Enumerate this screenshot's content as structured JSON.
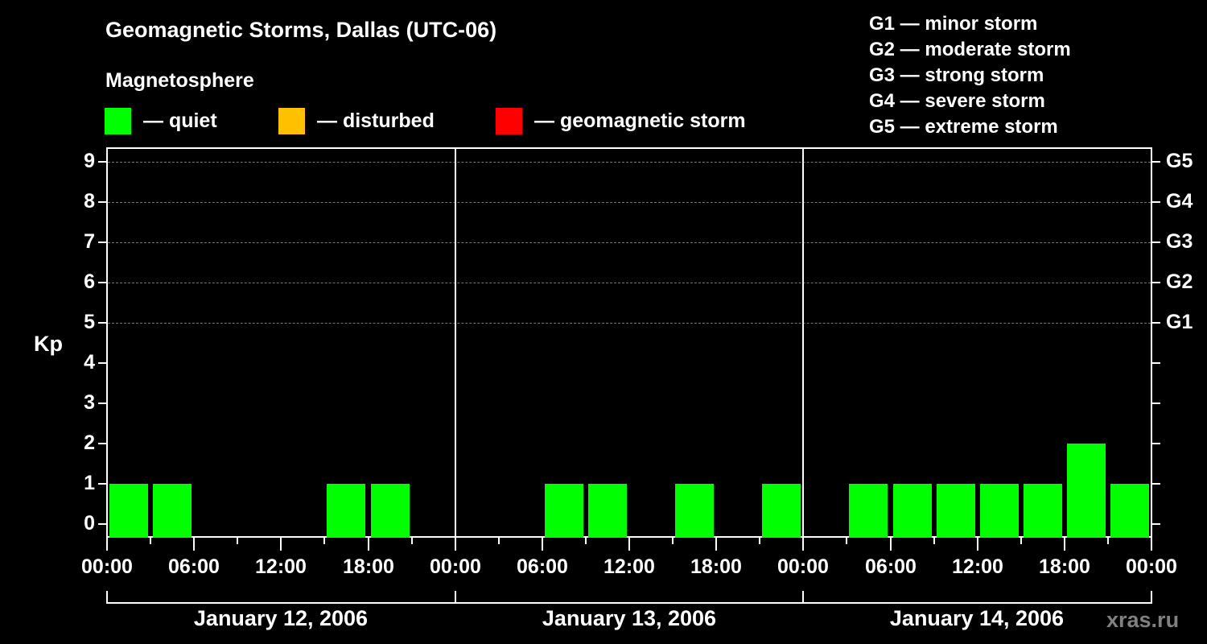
{
  "header": {
    "title": "Geomagnetic Storms, Dallas (UTC-06)",
    "subtitle": "Magnetosphere"
  },
  "legend": {
    "items": [
      {
        "label": "— quiet",
        "color": "#00ff00"
      },
      {
        "label": "— disturbed",
        "color": "#ffc000"
      },
      {
        "label": "— geomagnetic storm",
        "color": "#ff0000"
      }
    ]
  },
  "storm_scale": [
    "G1 — minor storm",
    "G2 — moderate storm",
    "G3 — strong storm",
    "G4 — severe storm",
    "G5 — extreme storm"
  ],
  "axes": {
    "y_label": "Kp",
    "y_ticks": [
      "0",
      "1",
      "2",
      "3",
      "4",
      "5",
      "6",
      "7",
      "8",
      "9"
    ],
    "g_ticks": [
      {
        "kp": 5,
        "label": "G1"
      },
      {
        "kp": 6,
        "label": "G2"
      },
      {
        "kp": 7,
        "label": "G3"
      },
      {
        "kp": 8,
        "label": "G4"
      },
      {
        "kp": 9,
        "label": "G5"
      }
    ],
    "x_tick_labels": [
      "00:00",
      "06:00",
      "12:00",
      "18:00",
      "00:00",
      "06:00",
      "12:00",
      "18:00",
      "00:00",
      "06:00",
      "12:00",
      "18:00",
      "00:00"
    ],
    "days": [
      "January 12, 2006",
      "January 13, 2006",
      "January 14, 2006"
    ]
  },
  "watermark": "xras.ru",
  "chart_data": {
    "type": "bar",
    "title": "Geomagnetic Storms, Dallas (UTC-06)",
    "subtitle": "Magnetosphere",
    "xlabel": "",
    "ylabel": "Kp",
    "ylim": [
      0,
      9
    ],
    "grid": "dashed horizontal at Kp 5-9",
    "interval_hours": 3,
    "categories": [
      "Jan 12 00:00",
      "Jan 12 03:00",
      "Jan 12 06:00",
      "Jan 12 09:00",
      "Jan 12 12:00",
      "Jan 12 15:00",
      "Jan 12 18:00",
      "Jan 12 21:00",
      "Jan 13 00:00",
      "Jan 13 03:00",
      "Jan 13 06:00",
      "Jan 13 09:00",
      "Jan 13 12:00",
      "Jan 13 15:00",
      "Jan 13 18:00",
      "Jan 13 21:00",
      "Jan 14 00:00",
      "Jan 14 03:00",
      "Jan 14 06:00",
      "Jan 14 09:00",
      "Jan 14 12:00",
      "Jan 14 15:00",
      "Jan 14 18:00",
      "Jan 14 21:00"
    ],
    "values": [
      1,
      1,
      0,
      0,
      0,
      1,
      1,
      0,
      0,
      0,
      1,
      1,
      0,
      1,
      0,
      1,
      0,
      1,
      1,
      1,
      1,
      1,
      2,
      1
    ],
    "bar_drawn": [
      true,
      true,
      false,
      false,
      false,
      true,
      true,
      false,
      false,
      false,
      true,
      true,
      false,
      true,
      false,
      true,
      false,
      true,
      true,
      true,
      true,
      true,
      true,
      true
    ],
    "status": "quiet",
    "legend": [
      "quiet",
      "disturbed",
      "geomagnetic storm"
    ],
    "secondary_axis": {
      "G1": 5,
      "G2": 6,
      "G3": 7,
      "G4": 8,
      "G5": 9
    }
  }
}
